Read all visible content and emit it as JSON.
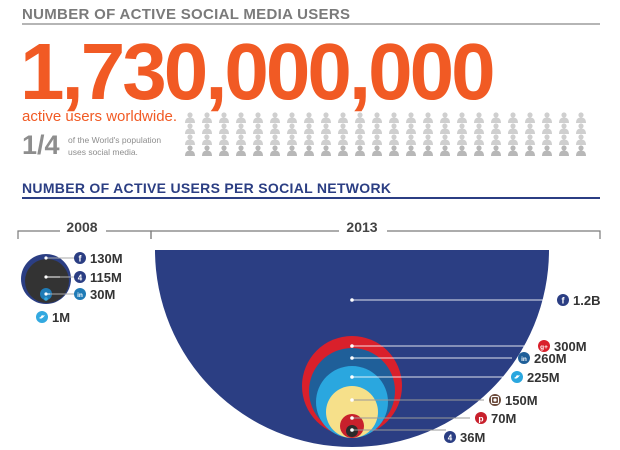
{
  "headline": "NUMBER OF ACTIVE SOCIAL MEDIA USERS",
  "total_users": "1,730,000,000",
  "total_caption": "active users worldwide.",
  "fraction": "1/4",
  "fraction_note": "of the World's population uses social media.",
  "section_title": "NUMBER OF ACTIVE USERS PER SOCIAL NETWORK",
  "colors": {
    "orange": "#f15a24",
    "navy": "#2b3e83",
    "grey": "#8e8e8e"
  },
  "people_fraction": 0.25,
  "chart_data": [
    {
      "type": "bubble",
      "title": "2008",
      "series": [
        {
          "icon": "facebook-icon",
          "label": "130M",
          "value": 130,
          "color": "#2b3e83"
        },
        {
          "icon": "foursquare-icon",
          "label": "115M",
          "value": 115,
          "color": "#333333"
        },
        {
          "icon": "linkedin-icon",
          "label": "30M",
          "value": 30,
          "color": "#1f7bb6"
        },
        {
          "icon": "twitter-icon",
          "label": "1M",
          "value": 1,
          "color": "#33a9e0"
        }
      ]
    },
    {
      "type": "bubble",
      "title": "2013",
      "series": [
        {
          "icon": "facebook-icon",
          "label": "1.2B",
          "value": 1200,
          "color": "#2b3e83"
        },
        {
          "icon": "google-plus-icon",
          "label": "300M",
          "value": 300,
          "color": "#d9202b"
        },
        {
          "icon": "linkedin-icon",
          "label": "260M",
          "value": 260,
          "color": "#1f5f99"
        },
        {
          "icon": "twitter-icon",
          "label": "225M",
          "value": 225,
          "color": "#2aa7df"
        },
        {
          "icon": "instagram-icon",
          "label": "150M",
          "value": 150,
          "color": "#f6e08a"
        },
        {
          "icon": "pinterest-icon",
          "label": "70M",
          "value": 70,
          "color": "#c8202c"
        },
        {
          "icon": "foursquare-icon",
          "label": "36M",
          "value": 36,
          "color": "#2b2b2b"
        }
      ]
    }
  ]
}
